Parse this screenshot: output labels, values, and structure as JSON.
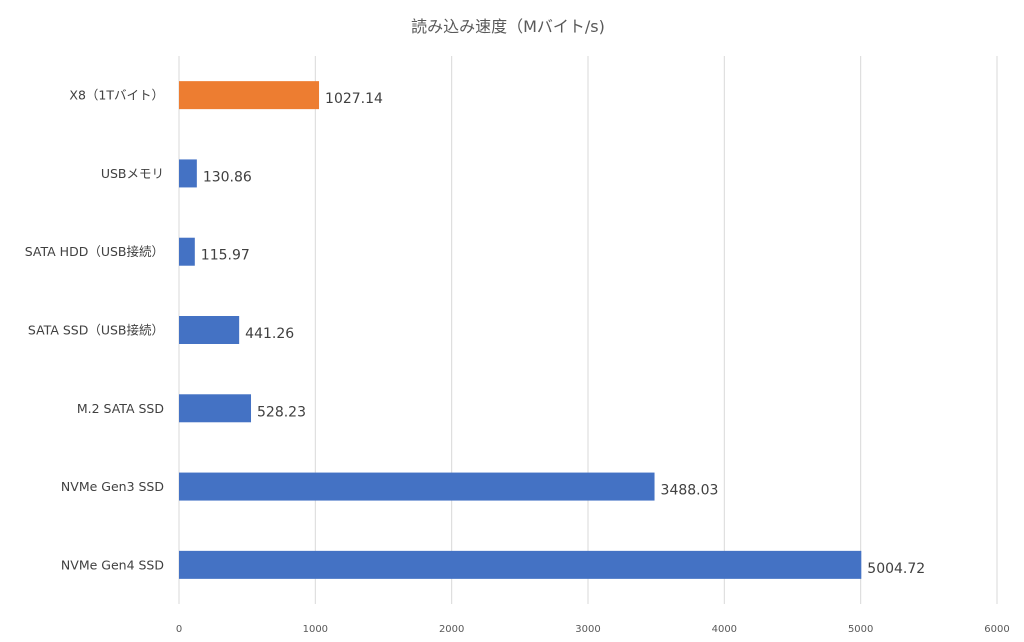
{
  "chart_data": {
    "type": "bar",
    "orientation": "horizontal",
    "title": "読み込み速度（Mバイト/s)",
    "xlabel": "",
    "ylabel": "",
    "xlim": [
      0,
      6000
    ],
    "x_ticks": [
      0,
      1000,
      2000,
      3000,
      4000,
      5000,
      6000
    ],
    "grid": true,
    "legend": "none",
    "categories": [
      "X8（1Tバイト）",
      "USBメモリ",
      "SATA HDD（USB接続）",
      "SATA SSD（USB接続）",
      "M.2 SATA SSD",
      "NVMe Gen3 SSD",
      "NVMe Gen4 SSD"
    ],
    "values": [
      1027.14,
      130.86,
      115.97,
      441.26,
      528.23,
      3488.03,
      5004.72
    ],
    "data_labels": [
      "1027.14",
      "130.86",
      "115.97",
      "441.26",
      "528.23",
      "3488.03",
      "5004.72"
    ],
    "colors": [
      "#ed7d31",
      "#4472c4",
      "#4472c4",
      "#4472c4",
      "#4472c4",
      "#4472c4",
      "#4472c4"
    ]
  }
}
